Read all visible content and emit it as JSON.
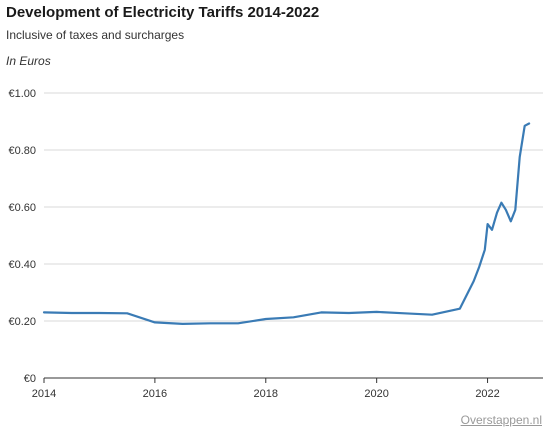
{
  "header": {
    "title": "Development of Electricity Tariffs 2014-2022",
    "subtitle": "Inclusive of taxes and surcharges",
    "unit": "In Euros"
  },
  "source_link": "Overstappen.nl",
  "chart_data": {
    "type": "line",
    "title": "Development of Electricity Tariffs 2014-2022",
    "subtitle": "Inclusive of taxes and surcharges",
    "ylabel": "In Euros",
    "xlabel": "",
    "xlim": [
      2014,
      2023
    ],
    "ylim": [
      0,
      1.0
    ],
    "x_ticks": [
      2014,
      2016,
      2018,
      2020,
      2022
    ],
    "x_tick_labels": [
      "2014",
      "2016",
      "2018",
      "2020",
      "2022"
    ],
    "y_ticks": [
      0,
      0.2,
      0.4,
      0.6,
      0.8,
      1.0
    ],
    "y_tick_labels": [
      "€0",
      "€0.20",
      "€0.40",
      "€0.60",
      "€0.80",
      "€1.00"
    ],
    "grid": "horizontal",
    "line_color": "#3a7bb5",
    "series": [
      {
        "name": "",
        "points": [
          [
            2014.0,
            0.23
          ],
          [
            2014.5,
            0.228
          ],
          [
            2015.0,
            0.228
          ],
          [
            2015.5,
            0.227
          ],
          [
            2016.0,
            0.195
          ],
          [
            2016.5,
            0.19
          ],
          [
            2017.0,
            0.192
          ],
          [
            2017.5,
            0.192
          ],
          [
            2018.0,
            0.207
          ],
          [
            2018.5,
            0.213
          ],
          [
            2019.0,
            0.23
          ],
          [
            2019.5,
            0.228
          ],
          [
            2020.0,
            0.232
          ],
          [
            2020.5,
            0.227
          ],
          [
            2021.0,
            0.222
          ],
          [
            2021.5,
            0.243
          ],
          [
            2021.75,
            0.34
          ],
          [
            2021.85,
            0.39
          ],
          [
            2021.95,
            0.45
          ],
          [
            2022.0,
            0.54
          ],
          [
            2022.08,
            0.52
          ],
          [
            2022.17,
            0.58
          ],
          [
            2022.25,
            0.615
          ],
          [
            2022.33,
            0.59
          ],
          [
            2022.42,
            0.55
          ],
          [
            2022.5,
            0.59
          ],
          [
            2022.58,
            0.775
          ],
          [
            2022.67,
            0.885
          ],
          [
            2022.75,
            0.893
          ]
        ]
      }
    ]
  }
}
